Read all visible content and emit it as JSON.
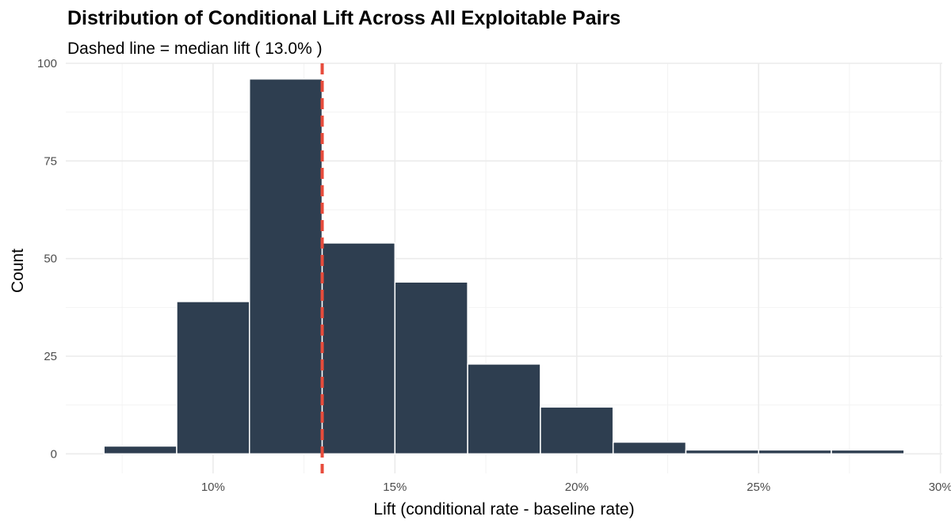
{
  "chart_data": {
    "type": "bar",
    "title": "Distribution of Conditional Lift Across All Exploitable Pairs",
    "subtitle": "Dashed line = median lift ( 13.0% )",
    "xlabel": "Lift (conditional rate - baseline rate)",
    "ylabel": "Count",
    "xlim": [
      0.0595,
      0.3005
    ],
    "ylim": [
      -5,
      100
    ],
    "x_ticks": [
      0.1,
      0.15,
      0.2,
      0.25,
      0.3
    ],
    "x_tick_labels": [
      "10%",
      "15%",
      "20%",
      "25%",
      "30%"
    ],
    "y_ticks": [
      0,
      25,
      50,
      75,
      100
    ],
    "y_tick_labels": [
      "0",
      "25",
      "50",
      "75",
      "100"
    ],
    "bin_width": 0.02,
    "bins": [
      {
        "start": 0.07,
        "end": 0.09,
        "count": 2
      },
      {
        "start": 0.09,
        "end": 0.11,
        "count": 39
      },
      {
        "start": 0.11,
        "end": 0.13,
        "count": 96
      },
      {
        "start": 0.13,
        "end": 0.15,
        "count": 54
      },
      {
        "start": 0.15,
        "end": 0.17,
        "count": 44
      },
      {
        "start": 0.17,
        "end": 0.19,
        "count": 23
      },
      {
        "start": 0.19,
        "end": 0.21,
        "count": 12
      },
      {
        "start": 0.21,
        "end": 0.23,
        "count": 3
      },
      {
        "start": 0.23,
        "end": 0.25,
        "count": 1
      },
      {
        "start": 0.25,
        "end": 0.27,
        "count": 1
      },
      {
        "start": 0.27,
        "end": 0.29,
        "count": 1
      }
    ],
    "median": 0.13,
    "grid": true,
    "legend": "none",
    "colors": {
      "bar_fill": "#2e3e50",
      "median_line": "#e74c3c"
    }
  }
}
